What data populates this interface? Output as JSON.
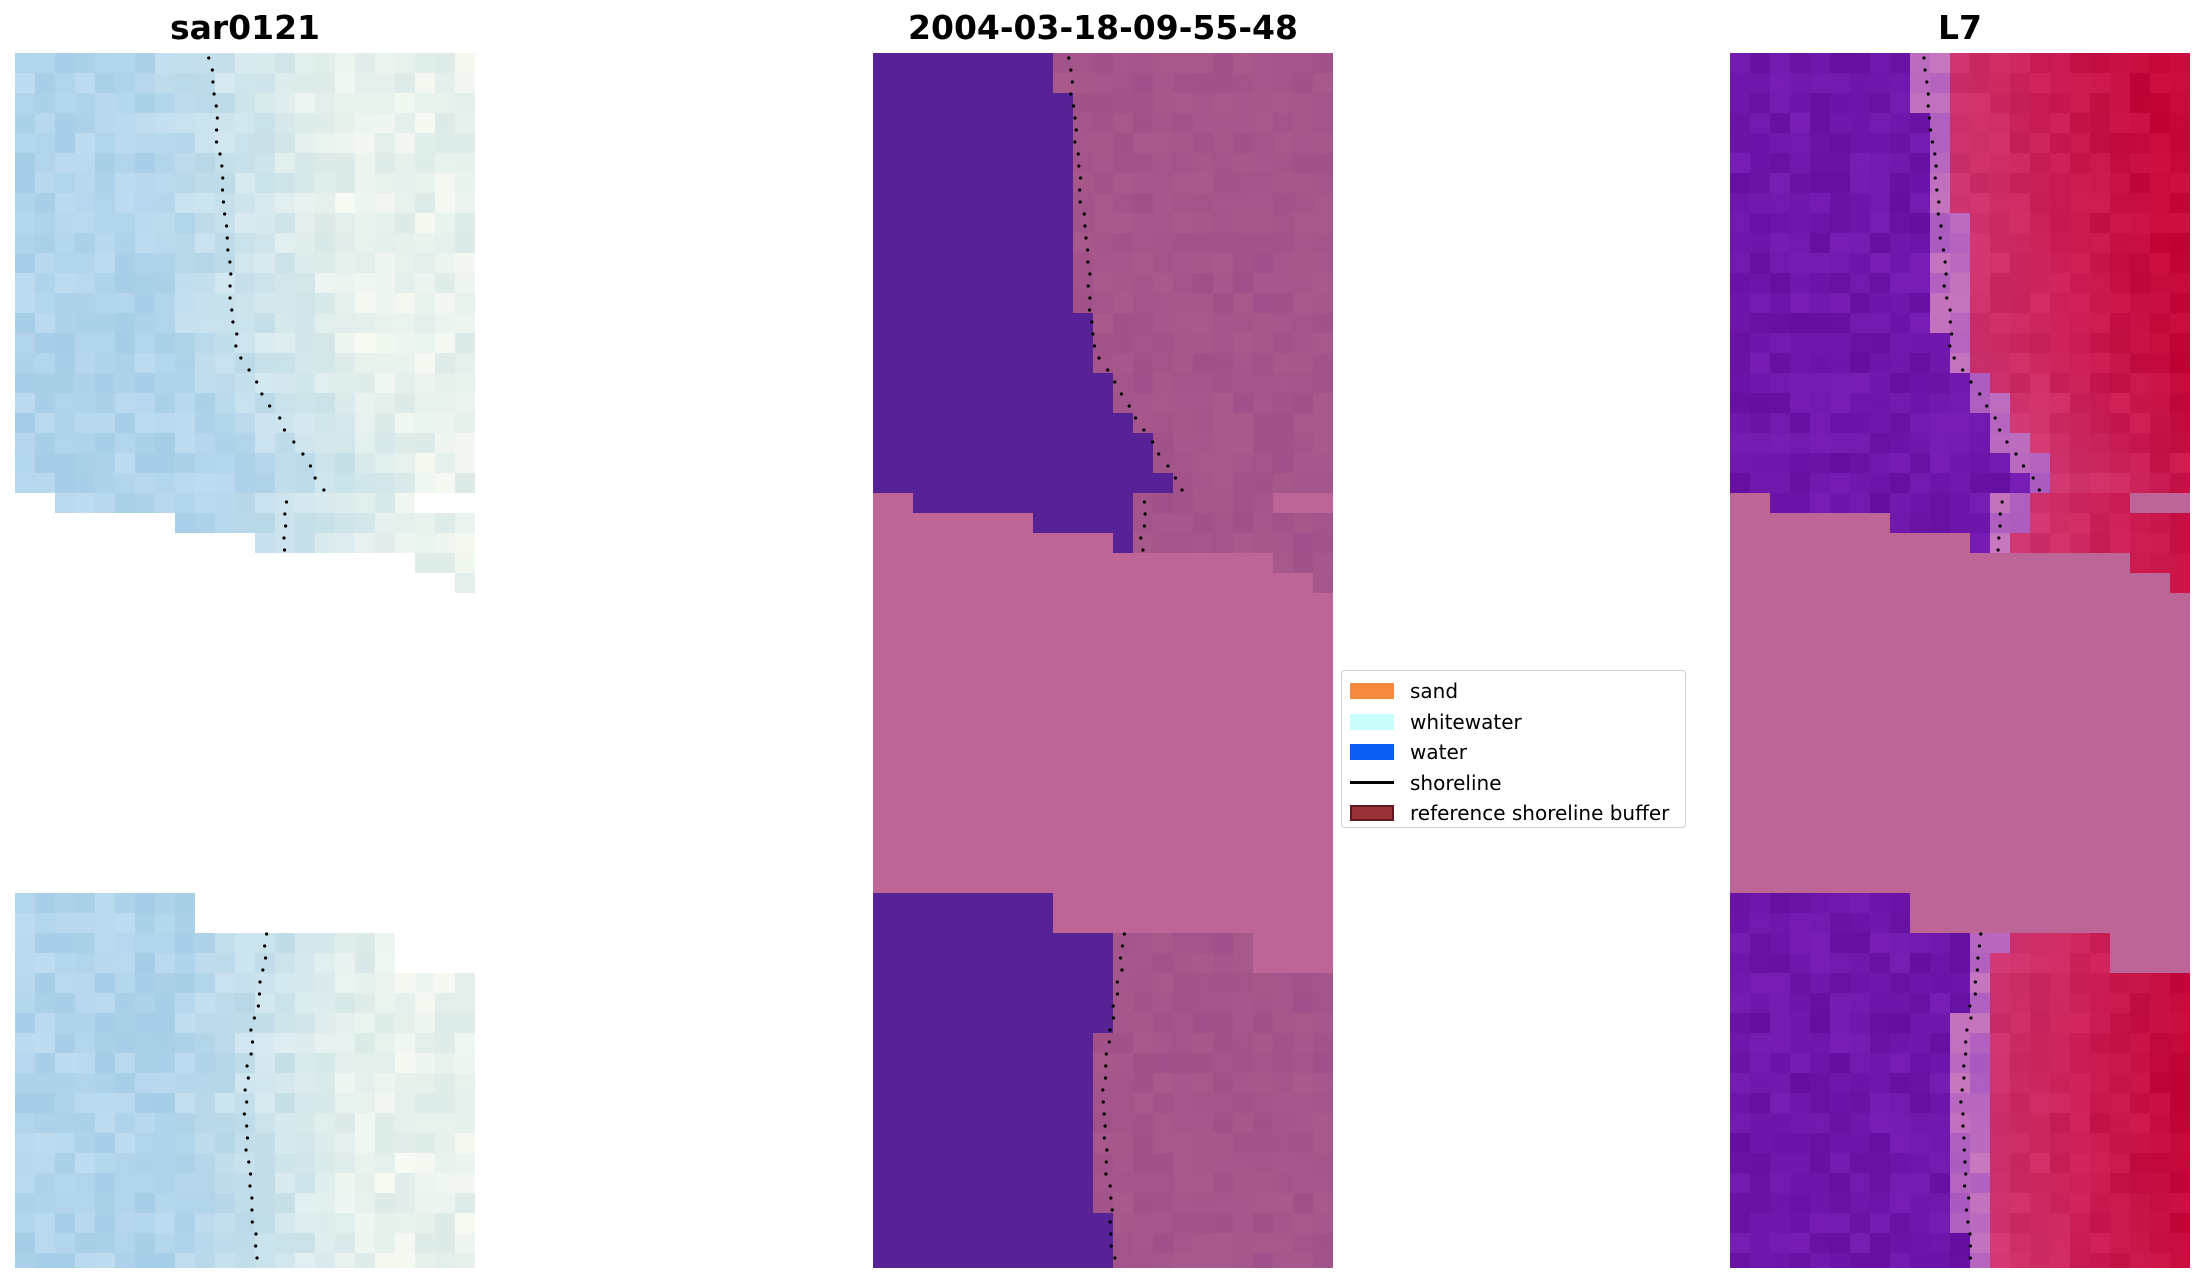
{
  "panels": [
    {
      "title": "sar0121"
    },
    {
      "title": "2004-03-18-09-55-48"
    },
    {
      "title": "L7"
    }
  ],
  "legend": {
    "items": [
      {
        "label": "sand",
        "color": "#f58a3f",
        "kind": "patch"
      },
      {
        "label": "whitewater",
        "color": "#c8fdfb",
        "kind": "patch"
      },
      {
        "label": "water",
        "color": "#0b5cf2",
        "kind": "patch"
      },
      {
        "label": "shoreline",
        "color": "#000000",
        "kind": "line"
      },
      {
        "label": "reference shoreline buffer",
        "color": "#9a3339",
        "kind": "patch",
        "edge": "#5a1a1e"
      }
    ]
  },
  "colors": {
    "nodata": "#bd6597",
    "water_class": "#562296",
    "shoreline_dots": "#000000"
  }
}
